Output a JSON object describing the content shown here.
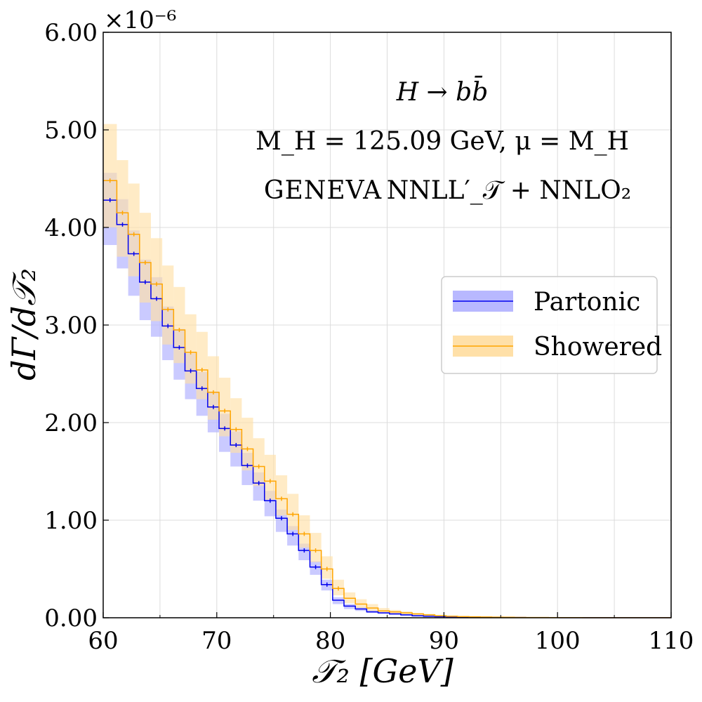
{
  "chart_data": {
    "type": "step-histogram",
    "xlabel": "𝒯₂   [GeV]",
    "ylabel": "dΓ/d𝒯₂",
    "y_scale_label": "×10⁻⁶",
    "xlim": [
      60,
      110
    ],
    "ylim": [
      0.0,
      6.0
    ],
    "y_scale": 1e-06,
    "grid": true,
    "x_ticks": [
      60,
      70,
      80,
      90,
      100,
      110
    ],
    "x_tick_labels": [
      "60",
      "70",
      "80",
      "90",
      "100",
      "110"
    ],
    "y_ticks": [
      0.0,
      1.0,
      2.0,
      3.0,
      4.0,
      5.0,
      6.0
    ],
    "y_tick_labels": [
      "0.00",
      "1.00",
      "2.00",
      "3.00",
      "4.00",
      "5.00",
      "6.00"
    ],
    "annotations": {
      "process": "H → bb̄",
      "parameters": "M_H = 125.09 GeV,  μ = M_H",
      "generator": "GENEVA",
      "accuracy": "NNLL′_𝒯 + NNLO₂"
    },
    "legend": {
      "placement": "center-right",
      "entries": [
        "Partonic",
        "Showered"
      ]
    },
    "bin_edges": [
      60,
      61.2,
      62.2,
      63.2,
      64.2,
      65.2,
      66.2,
      67.2,
      68.2,
      69.2,
      70.2,
      71.2,
      72.2,
      73.2,
      74.2,
      75.2,
      76.2,
      77.2,
      78.2,
      79.2,
      80.2,
      81.2,
      82.2,
      83.2,
      84.2,
      85.2,
      86.2,
      87.2,
      88.2,
      89.2,
      90.2,
      91.2,
      92.2,
      93.2,
      94.2,
      95.2,
      96.2,
      97.2,
      98.2,
      99.2,
      100.2,
      101.2,
      102.2,
      103.2,
      104.2,
      105.2,
      106.2,
      107.2,
      108.2,
      109.2,
      110
    ],
    "series": [
      {
        "name": "Partonic",
        "color": "#0000ee",
        "band_color": "#b8b8ff",
        "values": [
          4.28,
          4.03,
          3.73,
          3.44,
          3.27,
          2.99,
          2.77,
          2.53,
          2.35,
          2.16,
          1.94,
          1.77,
          1.56,
          1.38,
          1.2,
          1.02,
          0.86,
          0.69,
          0.52,
          0.34,
          0.18,
          0.12,
          0.09,
          0.06,
          0.05,
          0.04,
          0.03,
          0.02,
          0.015,
          0.012,
          0.01,
          0.008,
          0.006,
          0.005,
          0.004,
          0.003,
          0.003,
          0.002,
          0.002,
          0.002,
          0.001,
          0.001,
          0.001,
          0.001,
          0.001,
          0.001,
          0.001,
          0.001,
          0.001,
          0.001
        ],
        "band_lo": [
          3.82,
          3.58,
          3.3,
          3.05,
          2.88,
          2.64,
          2.44,
          2.24,
          2.07,
          1.9,
          1.7,
          1.55,
          1.36,
          1.2,
          1.04,
          0.88,
          0.74,
          0.59,
          0.44,
          0.28,
          0.14,
          0.09,
          0.07,
          0.05,
          0.04,
          0.03,
          0.02,
          0.015,
          0.011,
          0.009,
          0.007,
          0.006,
          0.005,
          0.004,
          0.003,
          0.002,
          0.002,
          0.002,
          0.001,
          0.001,
          0.001,
          0.001,
          0.001,
          0.001,
          0.001,
          0.001,
          0.001,
          0.001,
          0.001,
          0.001
        ],
        "band_hi": [
          4.56,
          4.29,
          3.97,
          3.67,
          3.49,
          3.19,
          2.96,
          2.71,
          2.52,
          2.32,
          2.09,
          1.91,
          1.69,
          1.49,
          1.3,
          1.11,
          0.94,
          0.76,
          0.58,
          0.39,
          0.21,
          0.14,
          0.11,
          0.08,
          0.06,
          0.05,
          0.04,
          0.03,
          0.02,
          0.015,
          0.012,
          0.01,
          0.008,
          0.006,
          0.005,
          0.004,
          0.004,
          0.003,
          0.003,
          0.002,
          0.002,
          0.002,
          0.002,
          0.001,
          0.001,
          0.001,
          0.001,
          0.001,
          0.001,
          0.001
        ]
      },
      {
        "name": "Showered",
        "color": "#ffa500",
        "band_color": "#ffe0a8",
        "values": [
          4.48,
          4.15,
          3.93,
          3.64,
          3.42,
          3.16,
          2.95,
          2.72,
          2.54,
          2.31,
          2.12,
          1.93,
          1.73,
          1.55,
          1.4,
          1.22,
          1.06,
          0.86,
          0.69,
          0.5,
          0.3,
          0.2,
          0.14,
          0.1,
          0.07,
          0.06,
          0.05,
          0.04,
          0.03,
          0.02,
          0.015,
          0.012,
          0.01,
          0.008,
          0.006,
          0.005,
          0.004,
          0.003,
          0.003,
          0.002,
          0.002,
          0.002,
          0.001,
          0.001,
          0.001,
          0.001,
          0.001,
          0.001,
          0.001,
          0.001
        ],
        "band_lo": [
          4.0,
          3.7,
          3.5,
          3.23,
          3.04,
          2.8,
          2.61,
          2.4,
          2.24,
          2.03,
          1.86,
          1.69,
          1.51,
          1.35,
          1.21,
          1.05,
          0.9,
          0.72,
          0.57,
          0.4,
          0.23,
          0.15,
          0.1,
          0.07,
          0.05,
          0.04,
          0.035,
          0.028,
          0.02,
          0.015,
          0.011,
          0.009,
          0.007,
          0.006,
          0.004,
          0.004,
          0.003,
          0.002,
          0.002,
          0.001,
          0.001,
          0.001,
          0.001,
          0.001,
          0.001,
          0.001,
          0.001,
          0.001,
          0.001,
          0.001
        ],
        "band_hi": [
          5.06,
          4.69,
          4.45,
          4.15,
          3.89,
          3.61,
          3.39,
          3.11,
          2.93,
          2.68,
          2.46,
          2.25,
          2.05,
          1.84,
          1.67,
          1.46,
          1.27,
          1.05,
          0.87,
          0.63,
          0.39,
          0.26,
          0.19,
          0.14,
          0.1,
          0.08,
          0.065,
          0.05,
          0.04,
          0.03,
          0.022,
          0.017,
          0.014,
          0.011,
          0.008,
          0.007,
          0.005,
          0.004,
          0.004,
          0.003,
          0.003,
          0.003,
          0.002,
          0.002,
          0.002,
          0.002,
          0.001,
          0.001,
          0.001,
          0.001
        ]
      }
    ]
  }
}
